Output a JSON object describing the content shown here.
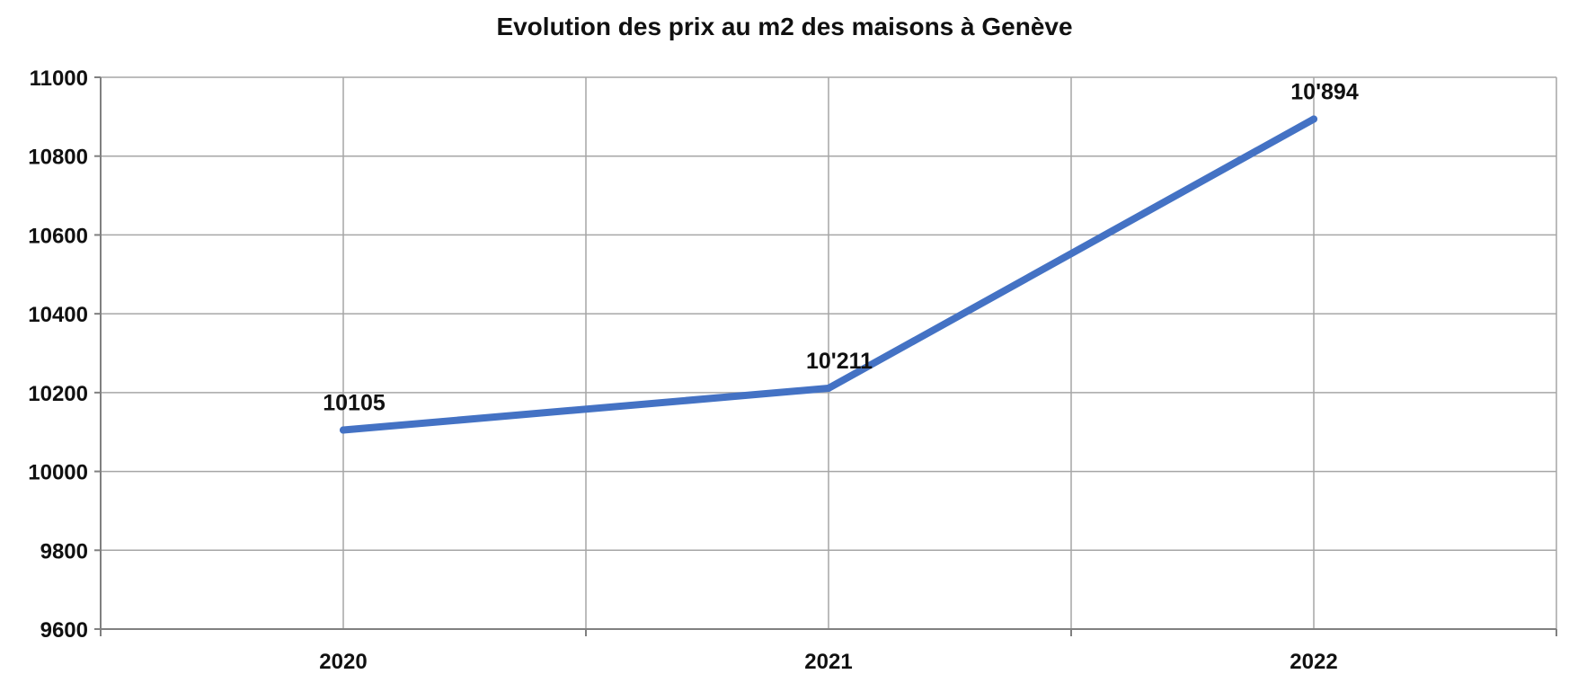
{
  "chart_data": {
    "type": "line",
    "title": "Evolution des prix au m2 des maisons à Genève",
    "xlabel": "",
    "ylabel": "",
    "categories": [
      "2020",
      "2021",
      "2022"
    ],
    "series": [
      {
        "values": [
          10105,
          10211,
          10894
        ],
        "data_labels": [
          "10105",
          "10'211",
          "10'894"
        ],
        "color": "#4472C4"
      }
    ],
    "ylim": [
      9600,
      11000
    ],
    "y_ticks": [
      9600,
      9800,
      10000,
      10200,
      10400,
      10600,
      10800,
      11000
    ],
    "y_tick_labels": [
      "9600",
      "9800",
      "10000",
      "10200",
      "10400",
      "10600",
      "10800",
      "11000"
    ],
    "grid": true,
    "legend": "none",
    "colors": {
      "grid": "#a6a6a6",
      "axis": "#808080",
      "text": "#111111"
    }
  }
}
